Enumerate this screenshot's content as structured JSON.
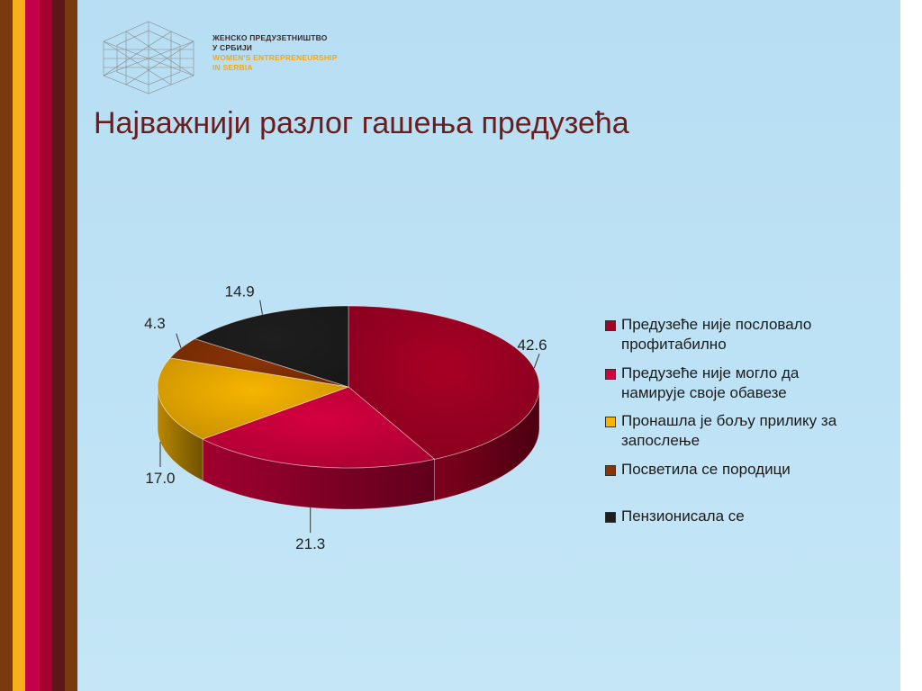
{
  "logo": {
    "line1": "ЖЕНСКО ПРЕДУЗЕТНИШТВО",
    "line2": "У СРБИЈИ",
    "line3": "WOMEN'S ENTREPRENEURSHIP",
    "line4": "IN SERBIA",
    "icon": "hexagon-pattern-icon"
  },
  "title": "Најважнији разлог гашења предузећа",
  "colors": {
    "stripes": [
      "#7a3a10",
      "#f5b01b",
      "#c4004b",
      "#a5002e",
      "#5e1717"
    ],
    "title": "#6b1d1d"
  },
  "chart_data": {
    "type": "pie",
    "style": "3d",
    "title": "Најважнији разлог гашења предузећа",
    "legend_position": "right",
    "slices": [
      {
        "label": "Предузеће није пословало профитабилно",
        "value": 42.6,
        "value_label": "42.6",
        "color": "#a80025"
      },
      {
        "label": "Предузеће није могло да намирује своје обавезе",
        "value": 21.3,
        "value_label": "21.3",
        "color": "#d5003e"
      },
      {
        "label": "Пронашла је бољу прилику за запослење",
        "value": 17.0,
        "value_label": "17.0",
        "color": "#f7b400"
      },
      {
        "label": "Посветила се породици",
        "value": 4.3,
        "value_label": "4.3",
        "color": "#8a3305"
      },
      {
        "label": "Пензионисала се",
        "value": 14.9,
        "value_label": "14.9",
        "color": "#1e1e1e"
      }
    ]
  }
}
